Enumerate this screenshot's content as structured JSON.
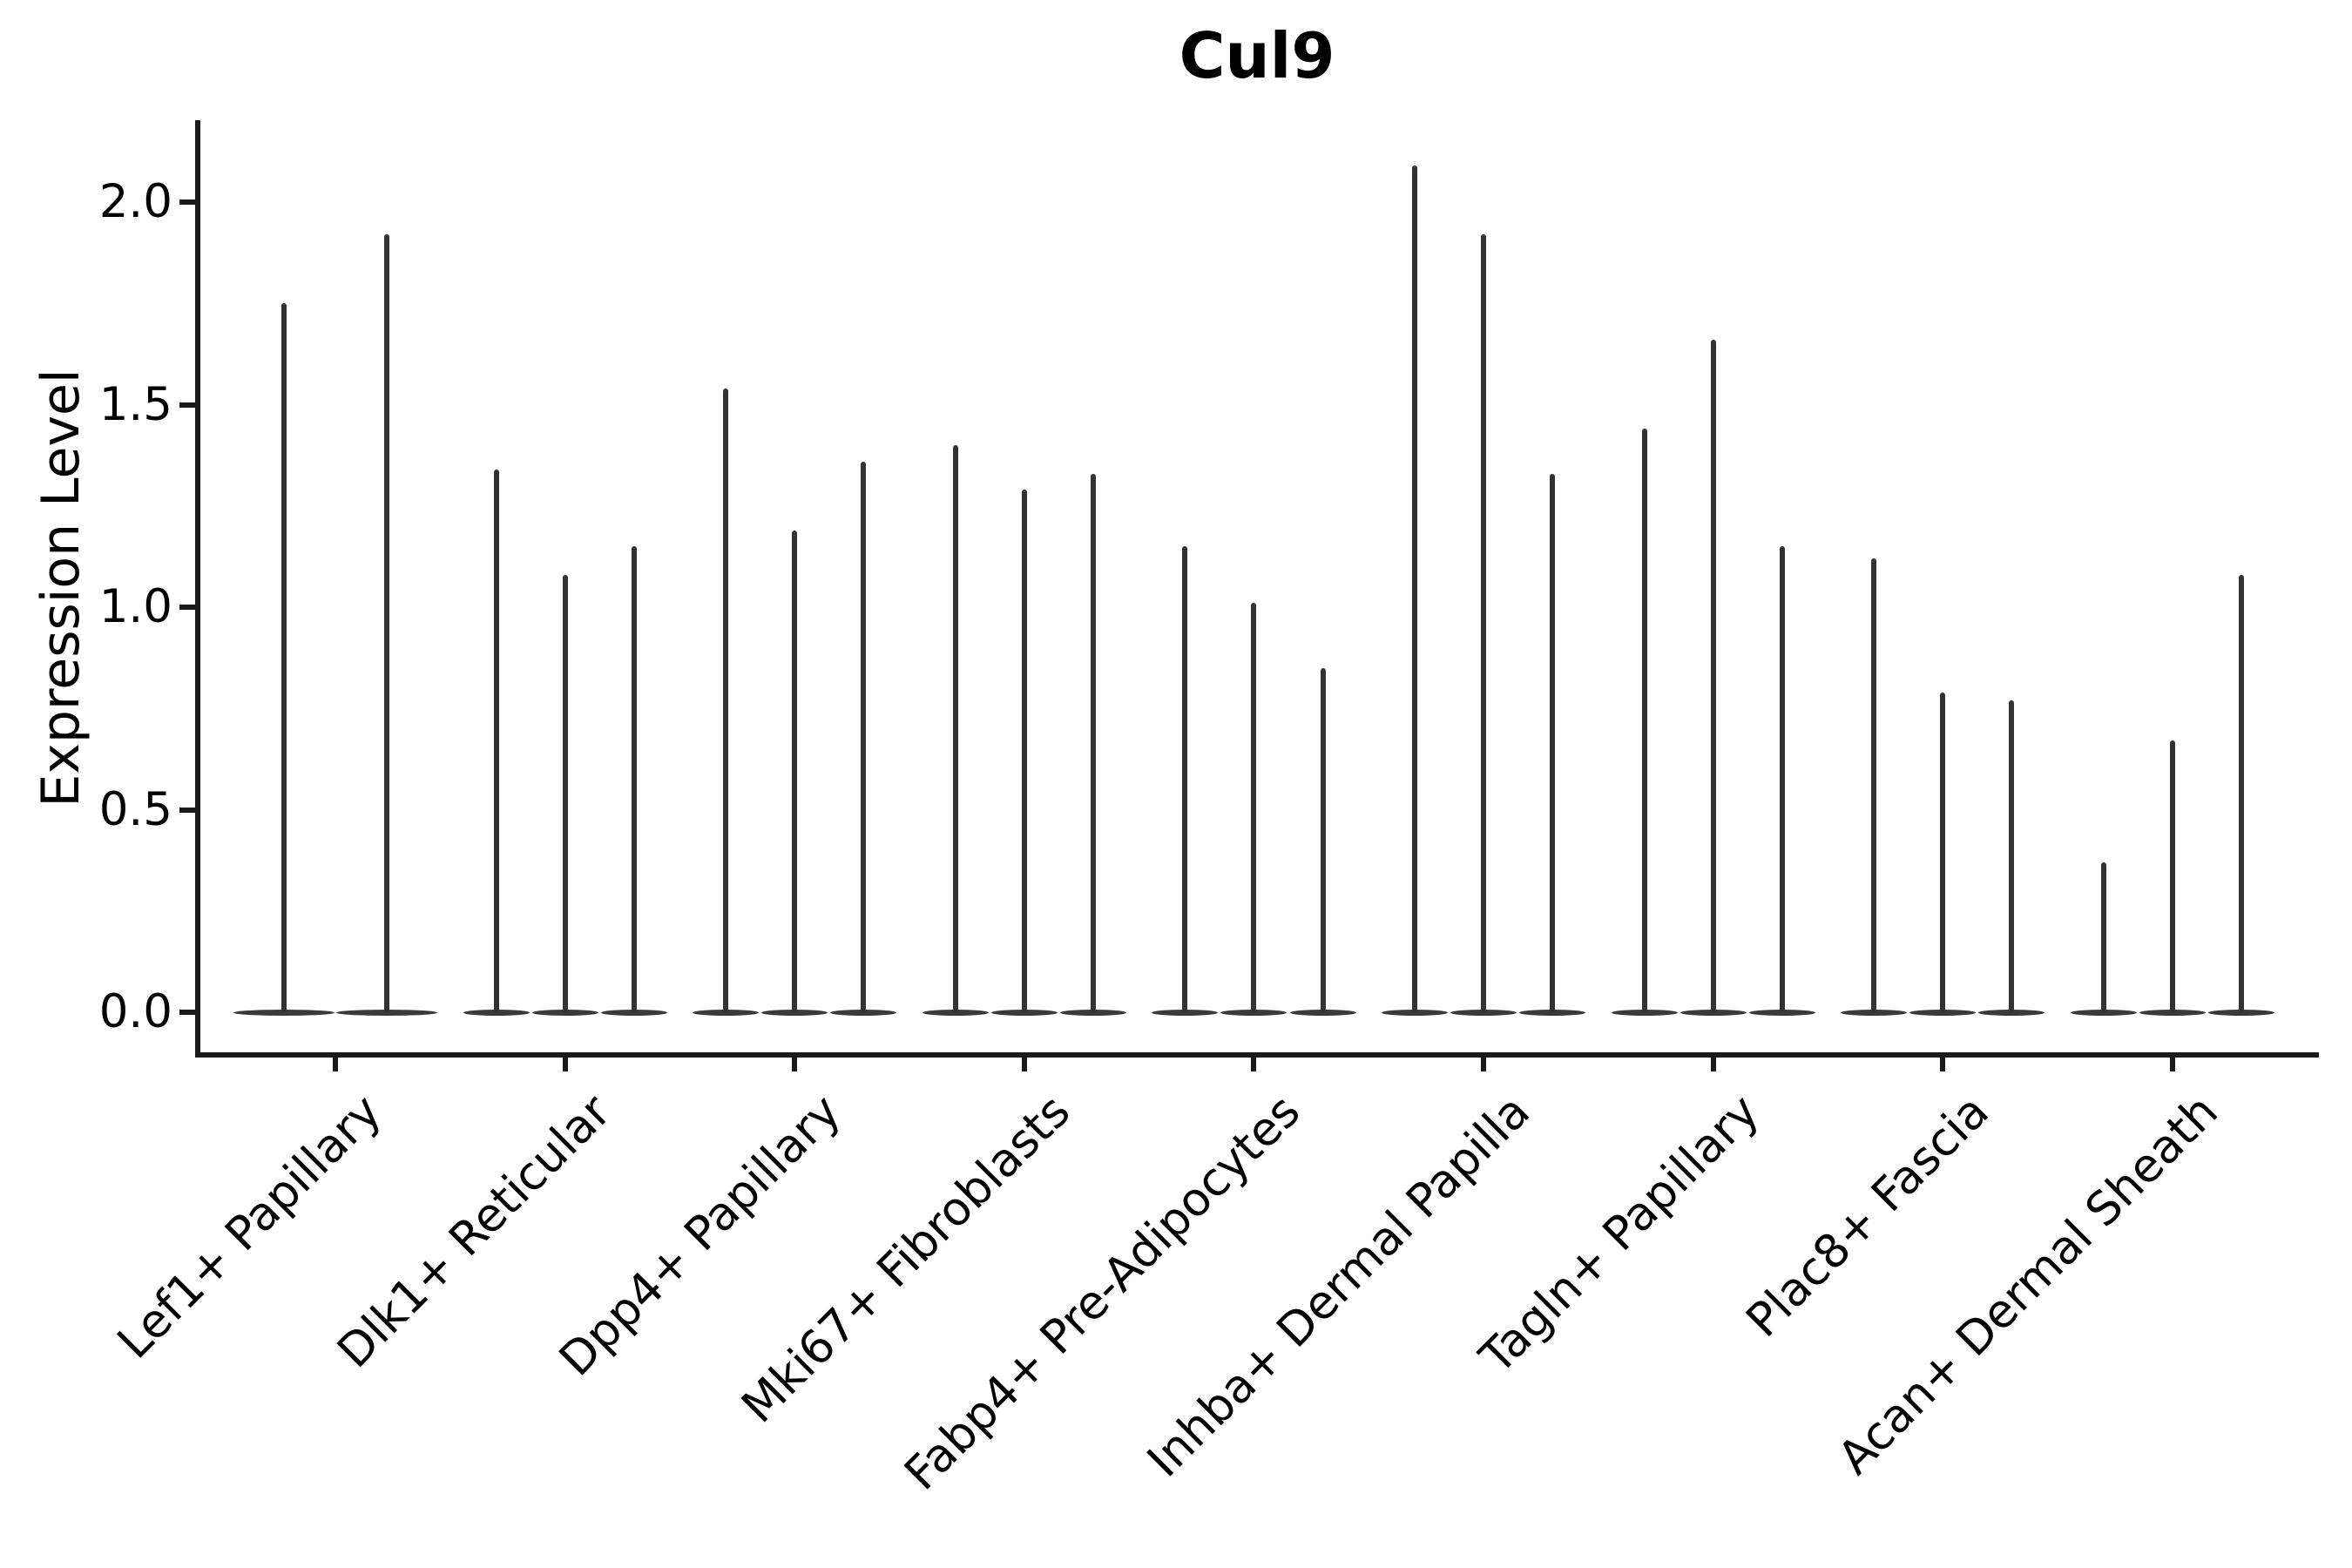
{
  "title": "Cul9",
  "colors": {
    "violin": "#333333",
    "axis": "#1a1a1a",
    "text": "#000000",
    "background": "#ffffff"
  },
  "chart_data": {
    "type": "violin",
    "title": "Cul9",
    "xlabel": "",
    "ylabel": "Expression Level",
    "ylim": [
      -0.11,
      2.2
    ],
    "grid": false,
    "legend_position": "none",
    "y_ticks": [
      {
        "label": "0.0",
        "value": 0.0
      },
      {
        "label": "0.5",
        "value": 0.5
      },
      {
        "label": "1.0",
        "value": 1.0
      },
      {
        "label": "1.5",
        "value": 1.5
      },
      {
        "label": "2.0",
        "value": 2.0
      }
    ],
    "categories": [
      "Lef1+ Papillary",
      "Dlk1+ Reticular",
      "Dpp4+ Papillary",
      "Mki67+ Fibroblasts",
      "Fabp4+ Pre-Adipocytes",
      "Inhba+ Dermal Papilla",
      "Tagln+ Papillary",
      "Plac8+ Fascia",
      "Acan+ Dermal Sheath"
    ],
    "groups": [
      {
        "category": "Lef1+ Papillary",
        "violin_max_values": [
          1.75,
          1.92
        ]
      },
      {
        "category": "Dlk1+ Reticular",
        "violin_max_values": [
          1.34,
          1.08,
          1.15
        ]
      },
      {
        "category": "Dpp4+ Papillary",
        "violin_max_values": [
          1.54,
          1.19,
          1.36
        ]
      },
      {
        "category": "Mki67+ Fibroblasts",
        "violin_max_values": [
          1.4,
          1.29,
          1.33
        ]
      },
      {
        "category": "Fabp4+ Pre-Adipocytes",
        "violin_max_values": [
          1.15,
          1.01,
          0.85
        ]
      },
      {
        "category": "Inhba+ Dermal Papilla",
        "violin_max_values": [
          2.09,
          1.92,
          1.33
        ]
      },
      {
        "category": "Tagln+ Papillary",
        "violin_max_values": [
          1.44,
          1.66,
          1.15
        ]
      },
      {
        "category": "Plac8+ Fascia",
        "violin_max_values": [
          1.12,
          0.79,
          0.77
        ]
      },
      {
        "category": "Acan+ Dermal Sheath",
        "violin_max_values": [
          0.37,
          0.67,
          1.08
        ]
      }
    ],
    "violin_shape_note": "each violin is a flat density lens at 0 with a thin vertical tail up to its max value"
  }
}
